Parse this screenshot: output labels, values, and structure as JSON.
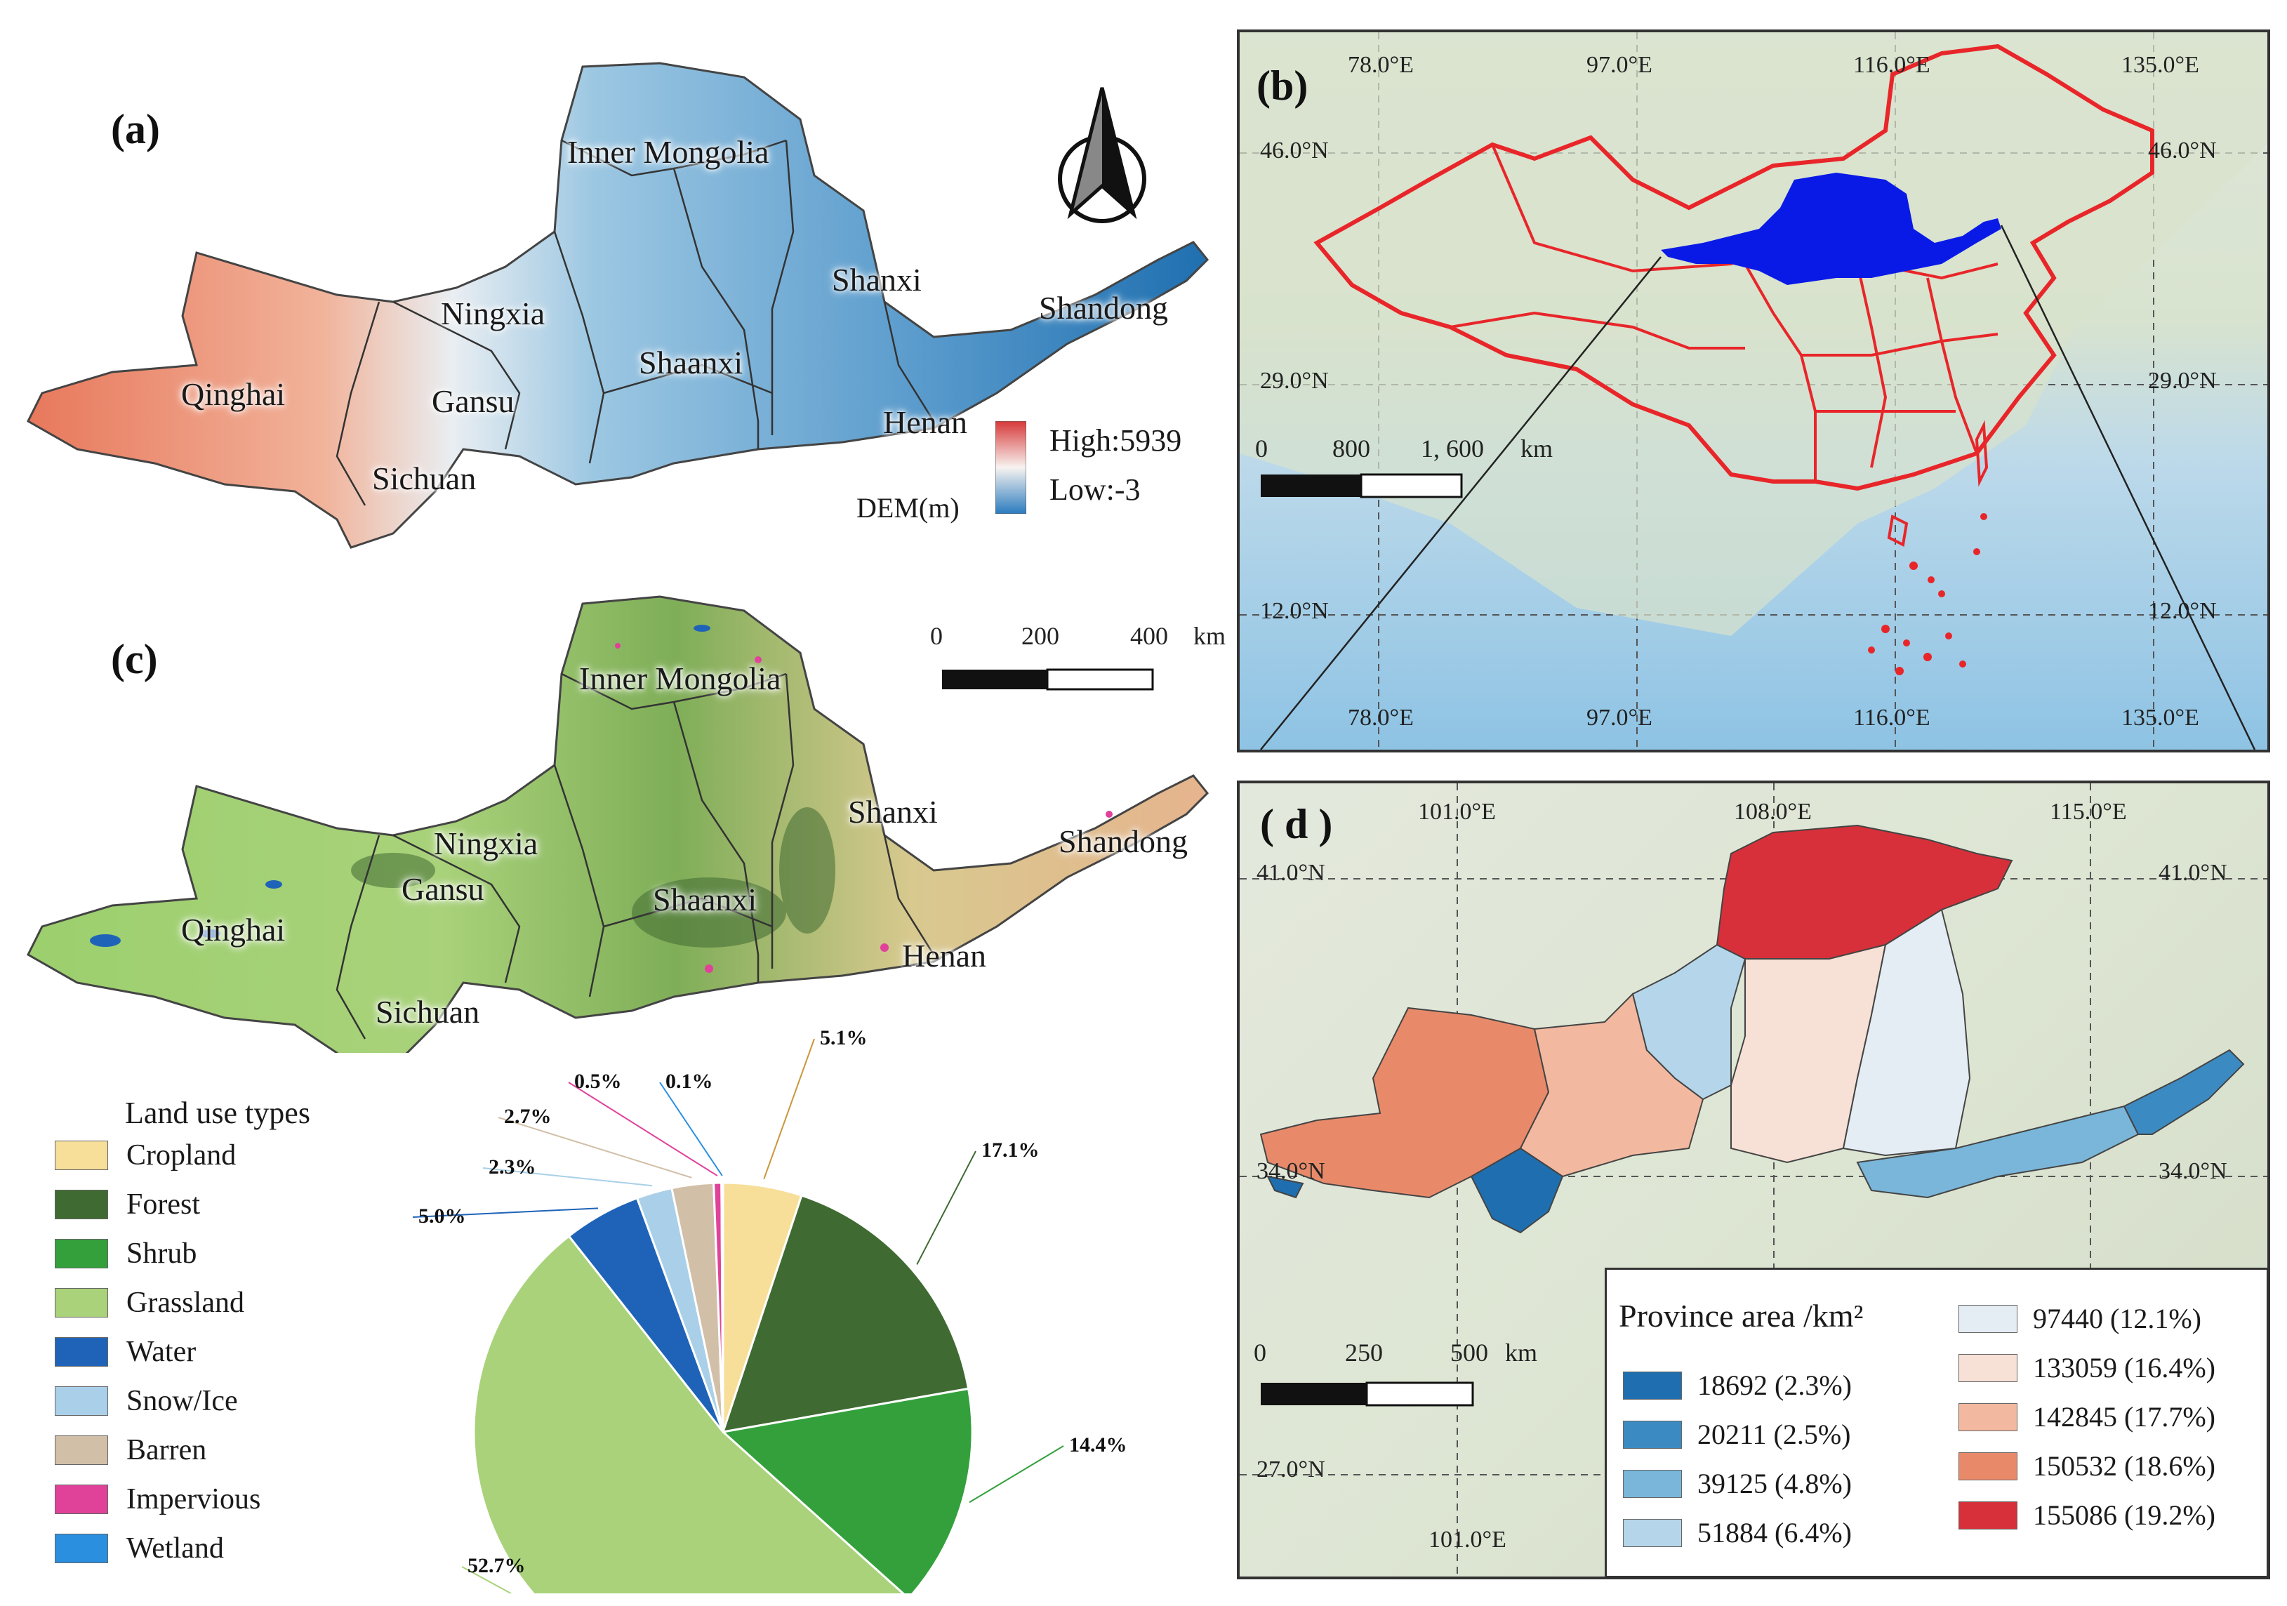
{
  "panels": {
    "a": "(a)",
    "b": "(b)",
    "c": "(c)",
    "d": "( d )"
  },
  "provinces": {
    "inner_mongolia": "Inner Mongolia",
    "shanxi": "Shanxi",
    "ningxia": "Ningxia",
    "shaanxi": "Shaanxi",
    "shandong": "Shandong",
    "qinghai": "Qinghai",
    "gansu": "Gansu",
    "henan": "Henan",
    "sichuan": "Sichuan"
  },
  "dem_legend": {
    "high": "High:5939",
    "low": "Low:-3",
    "title": "DEM(m)",
    "high_color": "#d7393a",
    "low_color": "#2a7bbf"
  },
  "scale_a": {
    "ticks": [
      "0",
      "200",
      "400"
    ],
    "unit": "km"
  },
  "map_b": {
    "lon_labels": [
      "78.0°E",
      "97.0°E",
      "116.0°E",
      "135.0°E"
    ],
    "lat_labels": [
      "46.0°N",
      "29.0°N",
      "12.0°N"
    ],
    "scale_ticks": [
      "0",
      "800",
      "1, 600"
    ],
    "scale_unit": "km",
    "boundary_color": "#e8262a",
    "basin_color": "#0a1ae6"
  },
  "map_d": {
    "lon_labels": [
      "101.0°E",
      "108.0°E",
      "115.0°E"
    ],
    "lat_labels": [
      "41.0°N",
      "34.0°N",
      "27.0°N"
    ],
    "scale_ticks": [
      "0",
      "250",
      "500"
    ],
    "scale_unit": "km",
    "legend_title": "Province area /km²",
    "area_classes": [
      {
        "value": "18692",
        "pct": "(2.3%)",
        "color": "#1f6fb0"
      },
      {
        "value": "20211",
        "pct": "(2.5%)",
        "color": "#3b8bc2"
      },
      {
        "value": "39125",
        "pct": "(4.8%)",
        "color": "#79b6da"
      },
      {
        "value": "51884",
        "pct": "(6.4%)",
        "color": "#b5d6ea"
      },
      {
        "value": "97440",
        "pct": "(12.1%)",
        "color": "#e4edf4"
      },
      {
        "value": "133059",
        "pct": "(16.4%)",
        "color": "#f7e0d6"
      },
      {
        "value": "142845",
        "pct": "(17.7%)",
        "color": "#f3b9a0"
      },
      {
        "value": "150532",
        "pct": "(18.6%)",
        "color": "#e88a6a"
      },
      {
        "value": "155086",
        "pct": "(19.2%)",
        "color": "#d7303a"
      }
    ]
  },
  "land_use": {
    "title": "Land use types",
    "types": [
      {
        "name": "Cropland",
        "color": "#f7df9a"
      },
      {
        "name": "Forest",
        "color": "#3f6a32"
      },
      {
        "name": "Shrub",
        "color": "#34a03c"
      },
      {
        "name": "Grassland",
        "color": "#a9d27a"
      },
      {
        "name": "Water",
        "color": "#1f63b8"
      },
      {
        "name": "Snow/Ice",
        "color": "#a9d0e8"
      },
      {
        "name": "Barren",
        "color": "#d2bfa8"
      },
      {
        "name": "Impervious",
        "color": "#e0429a"
      },
      {
        "name": "Wetland",
        "color": "#2b8fe0"
      }
    ]
  },
  "chart_data": {
    "type": "pie",
    "title": "Land use types",
    "categories": [
      "Cropland",
      "Forest",
      "Shrub",
      "Grassland",
      "Water",
      "Snow/Ice",
      "Barren",
      "Impervious",
      "Wetland"
    ],
    "values": [
      5.1,
      17.1,
      14.4,
      52.7,
      5.0,
      2.3,
      2.7,
      0.5,
      0.1
    ],
    "labels": [
      "5.1%",
      "17.1%",
      "14.4%",
      "52.7%",
      "5.0%",
      "2.3%",
      "2.7%",
      "0.5%",
      "0.1%"
    ],
    "colors": [
      "#f7df9a",
      "#3f6a32",
      "#34a03c",
      "#a9d27a",
      "#1f63b8",
      "#a9d0e8",
      "#d2bfa8",
      "#e0429a",
      "#2b8fe0"
    ]
  }
}
